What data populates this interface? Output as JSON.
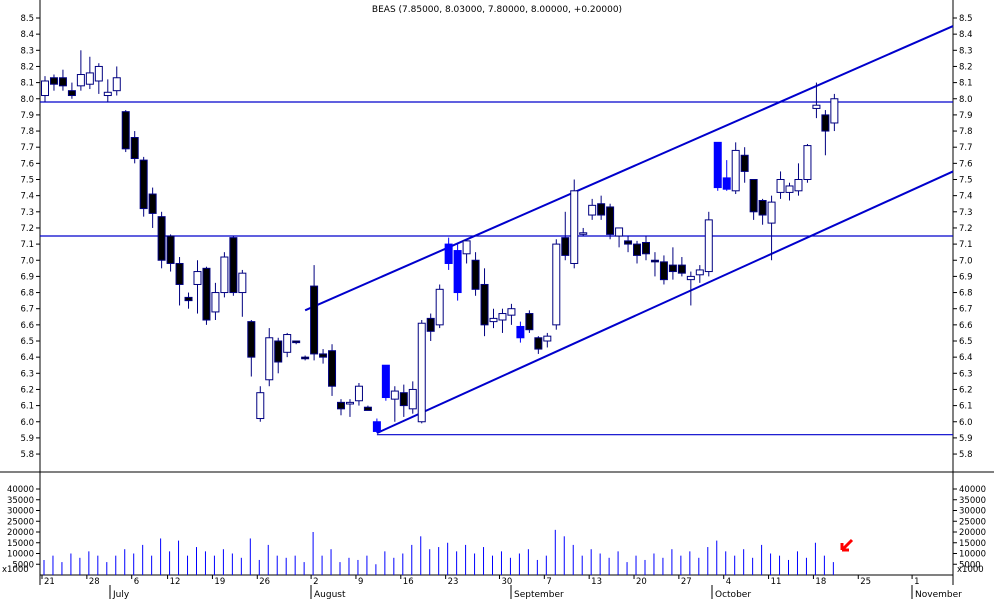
{
  "title": "BEAS (7.85000, 8.03000, 7.80000, 8.00000, +0.20000)",
  "colors": {
    "up": "#ffffff",
    "down": "#000000",
    "highlight": "#0000ff",
    "line": "#0000cc",
    "volume": "#0000ff",
    "arrow": "#ff0000"
  },
  "price_axis": {
    "ticks": [
      "8.5",
      "8.4",
      "8.3",
      "8.2",
      "8.1",
      "8.0",
      "7.9",
      "7.8",
      "7.7",
      "7.6",
      "7.5",
      "7.4",
      "7.3",
      "7.2",
      "7.1",
      "7.0",
      "6.9",
      "6.8",
      "6.7",
      "6.6",
      "6.5",
      "6.4",
      "6.3",
      "6.2",
      "6.1",
      "6.0",
      "5.9",
      "5.8"
    ]
  },
  "volume_axis": {
    "ticks": [
      "40000",
      "35000",
      "30000",
      "25000",
      "20000",
      "15000",
      "10000",
      "5000"
    ],
    "unit": "x1000"
  },
  "date_axis": {
    "day_labels": [
      "21",
      "28",
      "6",
      "12",
      "19",
      "26",
      "2",
      "9",
      "16",
      "23",
      "30",
      "7",
      "13",
      "20",
      "27",
      "4",
      "11",
      "18",
      "25",
      "1"
    ],
    "month_labels": [
      "July",
      "August",
      "September",
      "October",
      "November"
    ]
  },
  "chart_data": {
    "type": "candlestick",
    "title": "BEAS (7.85000, 8.03000, 7.80000, 8.00000, +0.20000)",
    "ylim": [
      5.8,
      8.5
    ],
    "volume_ylim": [
      0,
      40000
    ],
    "candles": [
      {
        "o": 8.02,
        "h": 8.14,
        "l": 7.98,
        "c": 8.11,
        "v": 7000
      },
      {
        "o": 8.13,
        "h": 8.15,
        "l": 8.05,
        "c": 8.09,
        "v": 9000
      },
      {
        "o": 8.13,
        "h": 8.18,
        "l": 8.05,
        "c": 8.08,
        "v": 6000
      },
      {
        "o": 8.05,
        "h": 8.1,
        "l": 8.0,
        "c": 8.02,
        "v": 10000
      },
      {
        "o": 8.08,
        "h": 8.3,
        "l": 8.05,
        "c": 8.15,
        "v": 8000
      },
      {
        "o": 8.09,
        "h": 8.26,
        "l": 8.06,
        "c": 8.16,
        "v": 11000
      },
      {
        "o": 8.11,
        "h": 8.22,
        "l": 8.03,
        "c": 8.2,
        "v": 9000
      },
      {
        "o": 8.02,
        "h": 8.12,
        "l": 7.98,
        "c": 8.04,
        "v": 6000
      },
      {
        "o": 8.05,
        "h": 8.2,
        "l": 8.02,
        "c": 8.13,
        "v": 9000
      },
      {
        "o": 7.92,
        "h": 7.93,
        "l": 7.67,
        "c": 7.69,
        "v": 12000
      },
      {
        "o": 7.76,
        "h": 7.8,
        "l": 7.6,
        "c": 7.63,
        "v": 10000
      },
      {
        "o": 7.62,
        "h": 7.64,
        "l": 7.27,
        "c": 7.32,
        "v": 14000
      },
      {
        "o": 7.41,
        "h": 7.45,
        "l": 7.2,
        "c": 7.29,
        "v": 9000
      },
      {
        "o": 7.27,
        "h": 7.3,
        "l": 6.95,
        "c": 7.0,
        "v": 17000
      },
      {
        "o": 7.15,
        "h": 7.16,
        "l": 6.93,
        "c": 6.98,
        "v": 11000
      },
      {
        "o": 6.98,
        "h": 7.02,
        "l": 6.72,
        "c": 6.85,
        "v": 16000
      },
      {
        "o": 6.77,
        "h": 6.8,
        "l": 6.7,
        "c": 6.75,
        "v": 9000
      },
      {
        "o": 6.85,
        "h": 7.0,
        "l": 6.67,
        "c": 6.93,
        "v": 13000
      },
      {
        "o": 6.95,
        "h": 6.96,
        "l": 6.6,
        "c": 6.63,
        "v": 11000
      },
      {
        "o": 6.68,
        "h": 6.86,
        "l": 6.63,
        "c": 6.8,
        "v": 9000
      },
      {
        "o": 6.8,
        "h": 7.05,
        "l": 6.77,
        "c": 7.02,
        "v": 12000
      },
      {
        "o": 7.14,
        "h": 7.15,
        "l": 6.78,
        "c": 6.8,
        "v": 10000
      },
      {
        "o": 6.8,
        "h": 6.94,
        "l": 6.65,
        "c": 6.92,
        "v": 8000
      },
      {
        "o": 6.62,
        "h": 6.63,
        "l": 6.28,
        "c": 6.4,
        "v": 17000
      },
      {
        "o": 6.02,
        "h": 6.22,
        "l": 6.0,
        "c": 6.18,
        "v": 7000
      },
      {
        "o": 6.26,
        "h": 6.58,
        "l": 6.22,
        "c": 6.52,
        "v": 14000
      },
      {
        "o": 6.5,
        "h": 6.52,
        "l": 6.3,
        "c": 6.37,
        "v": 9000
      },
      {
        "o": 6.43,
        "h": 6.55,
        "l": 6.4,
        "c": 6.54,
        "v": 8000
      },
      {
        "o": 6.5,
        "h": 6.5,
        "l": 6.48,
        "c": 6.49,
        "v": 9000
      },
      {
        "o": 6.4,
        "h": 6.41,
        "l": 6.38,
        "c": 6.39,
        "v": 6000
      },
      {
        "o": 6.84,
        "h": 6.97,
        "l": 6.38,
        "c": 6.42,
        "v": 20000
      },
      {
        "o": 6.42,
        "h": 6.45,
        "l": 6.36,
        "c": 6.4,
        "v": 9000
      },
      {
        "o": 6.44,
        "h": 6.48,
        "l": 6.16,
        "c": 6.22,
        "v": 12000
      },
      {
        "o": 6.12,
        "h": 6.14,
        "l": 6.04,
        "c": 6.08,
        "v": 6000
      },
      {
        "o": 6.11,
        "h": 6.14,
        "l": 6.03,
        "c": 6.12,
        "v": 8000
      },
      {
        "o": 6.13,
        "h": 6.24,
        "l": 6.1,
        "c": 6.22,
        "v": 7000
      },
      {
        "o": 6.09,
        "h": 6.1,
        "l": 6.07,
        "c": 6.07,
        "v": 9000
      },
      {
        "o": 6.0,
        "h": 6.02,
        "l": 5.93,
        "c": 5.94,
        "v": 5000
      },
      {
        "o": 6.15,
        "h": 6.35,
        "l": 6.13,
        "c": 6.35,
        "v": 11000
      },
      {
        "o": 6.14,
        "h": 6.22,
        "l": 6.0,
        "c": 6.19,
        "v": 8000
      },
      {
        "o": 6.18,
        "h": 6.23,
        "l": 6.03,
        "c": 6.1,
        "v": 10000
      },
      {
        "o": 6.08,
        "h": 6.25,
        "l": 6.05,
        "c": 6.2,
        "v": 14000
      },
      {
        "o": 6.0,
        "h": 6.63,
        "l": 5.99,
        "c": 6.61,
        "v": 18000
      },
      {
        "o": 6.64,
        "h": 6.67,
        "l": 6.5,
        "c": 6.56,
        "v": 12000
      },
      {
        "o": 6.6,
        "h": 6.85,
        "l": 6.58,
        "c": 6.82,
        "v": 13000
      },
      {
        "o": 7.1,
        "h": 7.14,
        "l": 6.94,
        "c": 6.98,
        "v": 15000
      },
      {
        "o": 7.06,
        "h": 7.1,
        "l": 6.75,
        "c": 6.8,
        "v": 11000
      },
      {
        "o": 7.04,
        "h": 7.1,
        "l": 6.98,
        "c": 7.12,
        "v": 14000
      },
      {
        "o": 7.0,
        "h": 7.05,
        "l": 6.78,
        "c": 6.82,
        "v": 10000
      },
      {
        "o": 6.85,
        "h": 6.95,
        "l": 6.53,
        "c": 6.6,
        "v": 13000
      },
      {
        "o": 6.62,
        "h": 6.7,
        "l": 6.58,
        "c": 6.64,
        "v": 9000
      },
      {
        "o": 6.63,
        "h": 6.7,
        "l": 6.55,
        "c": 6.67,
        "v": 11000
      },
      {
        "o": 6.66,
        "h": 6.73,
        "l": 6.6,
        "c": 6.7,
        "v": 8000
      },
      {
        "o": 6.59,
        "h": 6.62,
        "l": 6.49,
        "c": 6.52,
        "v": 10000
      },
      {
        "o": 6.67,
        "h": 6.69,
        "l": 6.55,
        "c": 6.57,
        "v": 12000
      },
      {
        "o": 6.52,
        "h": 6.53,
        "l": 6.42,
        "c": 6.45,
        "v": 7000
      },
      {
        "o": 6.5,
        "h": 6.55,
        "l": 6.46,
        "c": 6.53,
        "v": 9000
      },
      {
        "o": 6.6,
        "h": 7.13,
        "l": 6.57,
        "c": 7.1,
        "v": 21000
      },
      {
        "o": 7.14,
        "h": 7.3,
        "l": 7.0,
        "c": 7.03,
        "v": 18000
      },
      {
        "o": 6.98,
        "h": 7.5,
        "l": 6.95,
        "c": 7.43,
        "v": 14000
      },
      {
        "o": 7.17,
        "h": 7.2,
        "l": 7.15,
        "c": 7.17,
        "v": 9000
      },
      {
        "o": 7.28,
        "h": 7.38,
        "l": 7.25,
        "c": 7.34,
        "v": 12000
      },
      {
        "o": 7.35,
        "h": 7.4,
        "l": 7.25,
        "c": 7.28,
        "v": 10000
      },
      {
        "o": 7.33,
        "h": 7.35,
        "l": 7.13,
        "c": 7.16,
        "v": 8000
      },
      {
        "o": 7.15,
        "h": 7.2,
        "l": 7.08,
        "c": 7.2,
        "v": 11000
      },
      {
        "o": 7.12,
        "h": 7.15,
        "l": 7.05,
        "c": 7.1,
        "v": 6000
      },
      {
        "o": 7.1,
        "h": 7.12,
        "l": 6.98,
        "c": 7.03,
        "v": 9000
      },
      {
        "o": 7.11,
        "h": 7.15,
        "l": 7.0,
        "c": 7.04,
        "v": 7000
      },
      {
        "o": 7.0,
        "h": 7.05,
        "l": 6.9,
        "c": 6.99,
        "v": 10000
      },
      {
        "o": 6.99,
        "h": 7.03,
        "l": 6.85,
        "c": 6.88,
        "v": 8000
      },
      {
        "o": 6.97,
        "h": 7.08,
        "l": 6.88,
        "c": 6.93,
        "v": 12000
      },
      {
        "o": 6.97,
        "h": 7.02,
        "l": 6.9,
        "c": 6.92,
        "v": 9000
      },
      {
        "o": 6.88,
        "h": 6.93,
        "l": 6.72,
        "c": 6.9,
        "v": 11000
      },
      {
        "o": 6.91,
        "h": 6.97,
        "l": 6.86,
        "c": 6.94,
        "v": 8000
      },
      {
        "o": 6.93,
        "h": 7.3,
        "l": 6.9,
        "c": 7.25,
        "v": 13000
      },
      {
        "o": 7.73,
        "h": 7.73,
        "l": 7.43,
        "c": 7.45,
        "v": 16000
      },
      {
        "o": 7.51,
        "h": 7.62,
        "l": 7.43,
        "c": 7.44,
        "v": 11000
      },
      {
        "o": 7.43,
        "h": 7.73,
        "l": 7.41,
        "c": 7.68,
        "v": 9000
      },
      {
        "o": 7.65,
        "h": 7.7,
        "l": 7.48,
        "c": 7.55,
        "v": 12000
      },
      {
        "o": 7.5,
        "h": 7.5,
        "l": 7.25,
        "c": 7.3,
        "v": 8000
      },
      {
        "o": 7.37,
        "h": 7.38,
        "l": 7.22,
        "c": 7.28,
        "v": 14000
      },
      {
        "o": 7.23,
        "h": 7.4,
        "l": 7.0,
        "c": 7.36,
        "v": 10000
      },
      {
        "o": 7.42,
        "h": 7.55,
        "l": 7.38,
        "c": 7.5,
        "v": 9000
      },
      {
        "o": 7.42,
        "h": 7.48,
        "l": 7.37,
        "c": 7.46,
        "v": 7000
      },
      {
        "o": 7.43,
        "h": 7.6,
        "l": 7.4,
        "c": 7.5,
        "v": 11000
      },
      {
        "o": 7.5,
        "h": 7.72,
        "l": 7.48,
        "c": 7.71,
        "v": 8000
      },
      {
        "o": 7.94,
        "h": 8.1,
        "l": 7.88,
        "c": 7.96,
        "v": 15000
      },
      {
        "o": 7.9,
        "h": 7.93,
        "l": 7.65,
        "c": 7.8,
        "v": 9000
      },
      {
        "o": 7.85,
        "h": 8.03,
        "l": 7.8,
        "c": 8.0,
        "v": 6000
      }
    ],
    "blue_candle_indices": [
      37,
      38,
      45,
      46,
      53,
      75,
      76
    ],
    "trendlines": [
      {
        "from": [
          29,
          6.69
        ],
        "to": [
          "right",
          8.45
        ]
      },
      {
        "from": [
          37,
          5.93
        ],
        "to": [
          "right",
          7.55
        ]
      }
    ],
    "horizontal_lines": [
      7.98,
      7.15,
      5.92
    ],
    "horizontal_segment_start_index": 37
  }
}
